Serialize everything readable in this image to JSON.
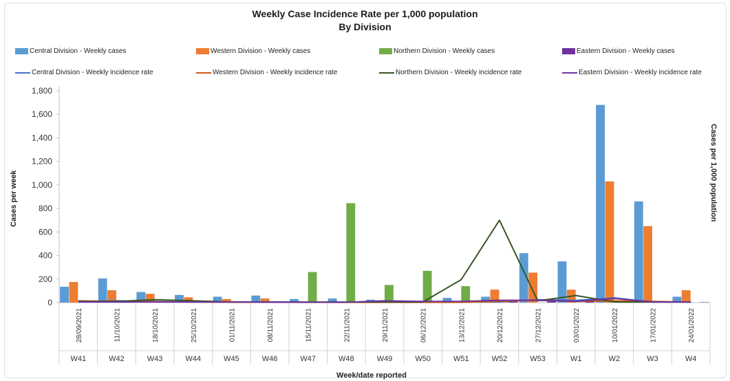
{
  "chart_data": {
    "type": "bar",
    "title": "Weekly Case Incidence Rate per 1,000 population",
    "subtitle": "By Division",
    "xlabel": "Week/date reported",
    "ylabel": "Cases  per week",
    "y2label": "Cases per 1,000 population",
    "ylim": [
      0,
      1800
    ],
    "yticks": [
      "0",
      "200",
      "400",
      "600",
      "800",
      "1,000",
      "1,200",
      "1,400",
      "1,600",
      "1,800"
    ],
    "dates": [
      "28/09/2021",
      "11/10/2021",
      "18/10/2021",
      "25/10/2021",
      "01/11/2021",
      "08/11/2021",
      "15/11/2021",
      "22/11/2021",
      "29/11/2021",
      "06/12/2021",
      "13/12/2021",
      "20/12/2021",
      "27/12/2021",
      "03/01/2022",
      "10/01/2022",
      "17/01/2022",
      "24/01/2022"
    ],
    "categories": [
      "W41",
      "W42",
      "W43",
      "W44",
      "W45",
      "W46",
      "W47",
      "W48",
      "W49",
      "W50",
      "W51",
      "W52",
      "W53",
      "W1",
      "W2",
      "W3",
      "W4"
    ],
    "legend_position": "top",
    "bar_series": [
      {
        "name": "Central Division - Weekly cases",
        "color": "#5b9bd5",
        "values": [
          135,
          205,
          90,
          65,
          50,
          60,
          30,
          35,
          25,
          5,
          40,
          50,
          420,
          350,
          1680,
          860,
          50
        ]
      },
      {
        "name": "Western Division - Weekly cases",
        "color": "#ed7d31",
        "values": [
          175,
          105,
          75,
          45,
          30,
          35,
          10,
          5,
          5,
          5,
          5,
          110,
          255,
          110,
          1030,
          650,
          105
        ]
      },
      {
        "name": "Northern Division - Weekly cases",
        "color": "#70ad47",
        "values": [
          0,
          0,
          0,
          0,
          0,
          0,
          260,
          845,
          150,
          270,
          140,
          0,
          0,
          0,
          0,
          0,
          0
        ]
      },
      {
        "name": "Eastern Division - Weekly cases",
        "color": "#7030a0",
        "values": [
          5,
          5,
          5,
          5,
          3,
          3,
          3,
          3,
          15,
          10,
          10,
          10,
          10,
          10,
          3,
          3,
          3
        ]
      }
    ],
    "line_series": [
      {
        "name": "Central Division - Weekly incidence rate",
        "color": "#4472c4",
        "values": [
          10,
          15,
          10,
          5,
          5,
          5,
          3,
          3,
          3,
          3,
          5,
          5,
          25,
          20,
          40,
          5,
          5
        ]
      },
      {
        "name": "Western Division - Weekly incidence rate",
        "color": "#c55a11",
        "values": [
          15,
          10,
          8,
          5,
          3,
          3,
          2,
          2,
          2,
          2,
          2,
          10,
          20,
          10,
          15,
          10,
          5
        ]
      },
      {
        "name": "Northern Division - Weekly incidence rate",
        "color": "#375623",
        "values": [
          10,
          10,
          25,
          15,
          5,
          5,
          5,
          5,
          5,
          5,
          195,
          700,
          15,
          60,
          5,
          5,
          5
        ]
      },
      {
        "name": "Eastern Division - Weekly incidence rate",
        "color": "#7030a0",
        "values": [
          5,
          5,
          5,
          5,
          5,
          3,
          3,
          3,
          15,
          10,
          10,
          20,
          20,
          10,
          35,
          5,
          5
        ]
      }
    ]
  }
}
